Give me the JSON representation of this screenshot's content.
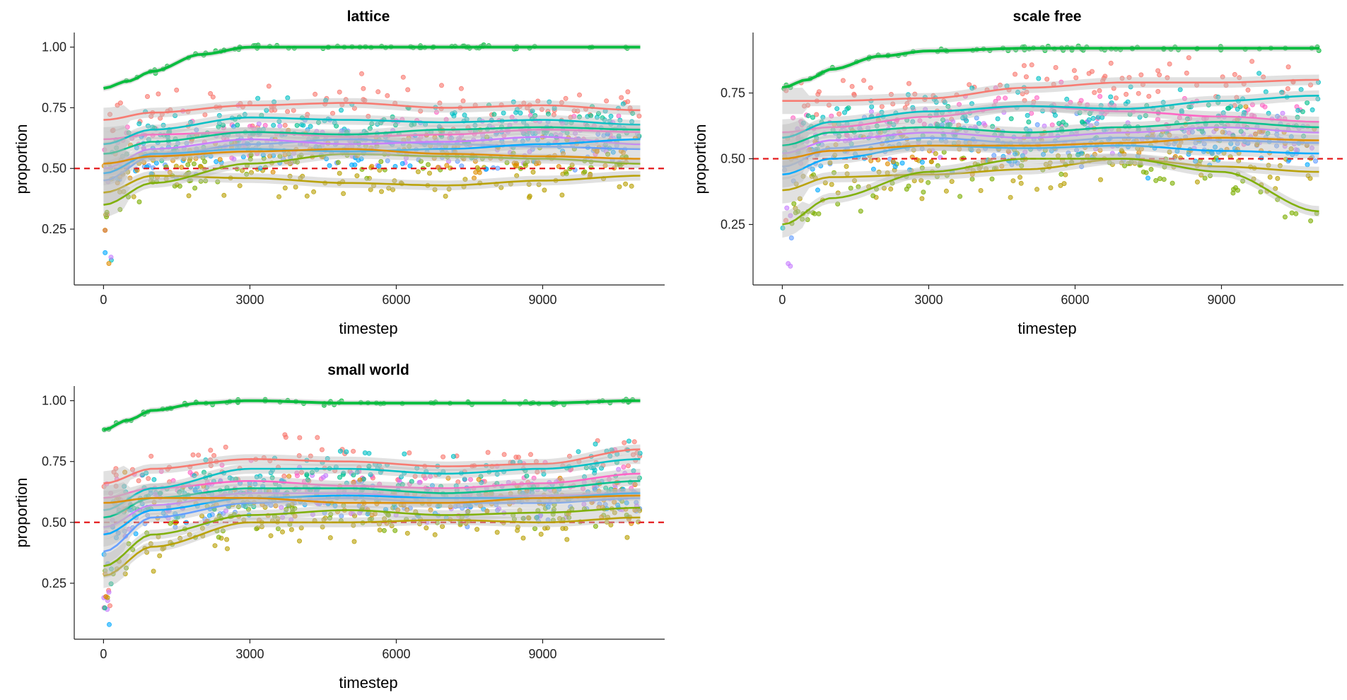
{
  "colors": {
    "reference_line": "#e41a1c",
    "axis": "#222222",
    "band": "#bdbdbd"
  },
  "chart_data": [
    {
      "type": "scatter",
      "title": "lattice",
      "xlabel": "timestep",
      "ylabel": "proportion",
      "xlim": [
        -600,
        11500
      ],
      "ylim": [
        0.02,
        1.06
      ],
      "x_ticks": [
        0,
        3000,
        6000,
        9000
      ],
      "x_tick_labels": [
        "0",
        "3000",
        "6000",
        "9000"
      ],
      "y_ticks": [
        0.25,
        0.5,
        0.75,
        1.0
      ],
      "y_tick_labels": [
        "0.25",
        "0.50",
        "0.75",
        "1.00"
      ],
      "reference_line": {
        "y": 0.5,
        "style": "dashed",
        "color": "#e41a1c"
      },
      "grid": false,
      "smooth_curves": [
        {
          "color": "#00ba38",
          "x": [
            0,
            500,
            1000,
            2000,
            3000,
            5000,
            7000,
            9000,
            11000
          ],
          "y": [
            0.83,
            0.86,
            0.9,
            0.97,
            1.0,
            1.0,
            1.0,
            1.0,
            1.0
          ]
        },
        {
          "color": "#f8766d",
          "x": [
            0,
            1000,
            3000,
            5000,
            7000,
            9000,
            11000
          ],
          "y": [
            0.7,
            0.73,
            0.76,
            0.77,
            0.75,
            0.76,
            0.74
          ]
        },
        {
          "color": "#ff61c3",
          "x": [
            0,
            1000,
            3000,
            5000,
            7000,
            9000,
            11000
          ],
          "y": [
            0.62,
            0.64,
            0.65,
            0.63,
            0.64,
            0.66,
            0.65
          ]
        },
        {
          "color": "#00bfc4",
          "x": [
            0,
            1000,
            3000,
            5000,
            7000,
            9000,
            11000
          ],
          "y": [
            0.6,
            0.66,
            0.71,
            0.7,
            0.69,
            0.7,
            0.68
          ]
        },
        {
          "color": "#619cff",
          "x": [
            0,
            1000,
            3000,
            5000,
            7000,
            9000,
            11000
          ],
          "y": [
            0.45,
            0.55,
            0.6,
            0.62,
            0.6,
            0.59,
            0.58
          ]
        },
        {
          "color": "#c77cff",
          "x": [
            0,
            1000,
            3000,
            5000,
            7000,
            9000,
            11000
          ],
          "y": [
            0.5,
            0.58,
            0.62,
            0.6,
            0.61,
            0.63,
            0.6
          ]
        },
        {
          "color": "#b79f00",
          "x": [
            0,
            1000,
            3000,
            5000,
            7000,
            9000,
            11000
          ],
          "y": [
            0.4,
            0.47,
            0.46,
            0.44,
            0.43,
            0.45,
            0.47
          ]
        },
        {
          "color": "#7cae00",
          "x": [
            0,
            1000,
            3000,
            5000,
            7000,
            9000,
            11000
          ],
          "y": [
            0.35,
            0.44,
            0.52,
            0.56,
            0.55,
            0.54,
            0.52
          ]
        },
        {
          "color": "#00a9ff",
          "x": [
            0,
            1000,
            3000,
            5000,
            7000,
            9000,
            11000
          ],
          "y": [
            0.48,
            0.56,
            0.58,
            0.57,
            0.58,
            0.6,
            0.62
          ]
        },
        {
          "color": "#00c08b",
          "x": [
            0,
            1000,
            3000,
            5000,
            7000,
            9000,
            11000
          ],
          "y": [
            0.56,
            0.61,
            0.65,
            0.64,
            0.66,
            0.67,
            0.66
          ]
        },
        {
          "color": "#de8c00",
          "x": [
            0,
            1000,
            3000,
            5000,
            7000,
            9000,
            11000
          ],
          "y": [
            0.52,
            0.55,
            0.57,
            0.58,
            0.56,
            0.55,
            0.54
          ]
        }
      ]
    },
    {
      "type": "scatter",
      "title": "scale free",
      "xlabel": "timestep",
      "ylabel": "proportion",
      "xlim": [
        -600,
        11500
      ],
      "ylim": [
        0.02,
        0.98
      ],
      "x_ticks": [
        0,
        3000,
        6000,
        9000
      ],
      "x_tick_labels": [
        "0",
        "3000",
        "6000",
        "9000"
      ],
      "y_ticks": [
        0.25,
        0.5,
        0.75
      ],
      "y_tick_labels": [
        "0.25",
        "0.50",
        "0.75"
      ],
      "reference_line": {
        "y": 0.5,
        "style": "dashed",
        "color": "#e41a1c"
      },
      "grid": false,
      "smooth_curves": [
        {
          "color": "#00ba38",
          "x": [
            0,
            500,
            1000,
            2000,
            3000,
            5000,
            7000,
            9000,
            11000
          ],
          "y": [
            0.77,
            0.8,
            0.84,
            0.89,
            0.91,
            0.92,
            0.92,
            0.92,
            0.92
          ]
        },
        {
          "color": "#f8766d",
          "x": [
            0,
            1000,
            3000,
            5000,
            7000,
            9000,
            11000
          ],
          "y": [
            0.72,
            0.72,
            0.73,
            0.77,
            0.79,
            0.79,
            0.8
          ]
        },
        {
          "color": "#ff61c3",
          "x": [
            0,
            1000,
            3000,
            5000,
            7000,
            9000,
            11000
          ],
          "y": [
            0.6,
            0.62,
            0.66,
            0.7,
            0.68,
            0.66,
            0.64
          ]
        },
        {
          "color": "#00bfc4",
          "x": [
            0,
            1000,
            3000,
            5000,
            7000,
            9000,
            11000
          ],
          "y": [
            0.58,
            0.64,
            0.68,
            0.7,
            0.69,
            0.72,
            0.74
          ]
        },
        {
          "color": "#619cff",
          "x": [
            0,
            1000,
            3000,
            5000,
            7000,
            9000,
            11000
          ],
          "y": [
            0.47,
            0.54,
            0.58,
            0.56,
            0.58,
            0.57,
            0.56
          ]
        },
        {
          "color": "#c77cff",
          "x": [
            0,
            1000,
            3000,
            5000,
            7000,
            9000,
            11000
          ],
          "y": [
            0.52,
            0.57,
            0.6,
            0.58,
            0.6,
            0.62,
            0.6
          ]
        },
        {
          "color": "#b79f00",
          "x": [
            0,
            1000,
            3000,
            5000,
            7000,
            9000,
            11000
          ],
          "y": [
            0.38,
            0.43,
            0.44,
            0.46,
            0.5,
            0.47,
            0.45
          ]
        },
        {
          "color": "#7cae00",
          "x": [
            0,
            1000,
            3000,
            5000,
            7000,
            9000,
            11000
          ],
          "y": [
            0.25,
            0.35,
            0.45,
            0.5,
            0.5,
            0.45,
            0.3
          ]
        },
        {
          "color": "#00a9ff",
          "x": [
            0,
            1000,
            3000,
            5000,
            7000,
            9000,
            11000
          ],
          "y": [
            0.44,
            0.5,
            0.55,
            0.54,
            0.55,
            0.53,
            0.52
          ]
        },
        {
          "color": "#00c08b",
          "x": [
            0,
            1000,
            3000,
            5000,
            7000,
            9000,
            11000
          ],
          "y": [
            0.55,
            0.6,
            0.62,
            0.6,
            0.62,
            0.64,
            0.62
          ]
        },
        {
          "color": "#de8c00",
          "x": [
            0,
            1000,
            3000,
            5000,
            7000,
            9000,
            11000
          ],
          "y": [
            0.5,
            0.53,
            0.55,
            0.55,
            0.56,
            0.58,
            0.57
          ]
        }
      ]
    },
    {
      "type": "scatter",
      "title": "small world",
      "xlabel": "timestep",
      "ylabel": "proportion",
      "xlim": [
        -600,
        11500
      ],
      "ylim": [
        0.02,
        1.06
      ],
      "x_ticks": [
        0,
        3000,
        6000,
        9000
      ],
      "x_tick_labels": [
        "0",
        "3000",
        "6000",
        "9000"
      ],
      "y_ticks": [
        0.25,
        0.5,
        0.75,
        1.0
      ],
      "y_tick_labels": [
        "0.25",
        "0.50",
        "0.75",
        "1.00"
      ],
      "reference_line": {
        "y": 0.5,
        "style": "dashed",
        "color": "#e41a1c"
      },
      "grid": false,
      "smooth_curves": [
        {
          "color": "#00ba38",
          "x": [
            0,
            500,
            1000,
            2000,
            3000,
            5000,
            7000,
            9000,
            11000
          ],
          "y": [
            0.88,
            0.92,
            0.96,
            0.99,
            1.0,
            0.99,
            0.99,
            0.99,
            1.0
          ]
        },
        {
          "color": "#f8766d",
          "x": [
            0,
            1000,
            3000,
            5000,
            7000,
            9000,
            11000
          ],
          "y": [
            0.66,
            0.72,
            0.76,
            0.75,
            0.73,
            0.74,
            0.8
          ]
        },
        {
          "color": "#ff61c3",
          "x": [
            0,
            1000,
            3000,
            5000,
            7000,
            9000,
            11000
          ],
          "y": [
            0.6,
            0.64,
            0.67,
            0.65,
            0.64,
            0.66,
            0.7
          ]
        },
        {
          "color": "#00bfc4",
          "x": [
            0,
            1000,
            3000,
            5000,
            7000,
            9000,
            11000
          ],
          "y": [
            0.55,
            0.64,
            0.72,
            0.72,
            0.7,
            0.72,
            0.76
          ]
        },
        {
          "color": "#619cff",
          "x": [
            0,
            1000,
            3000,
            5000,
            7000,
            9000,
            11000
          ],
          "y": [
            0.38,
            0.52,
            0.58,
            0.6,
            0.58,
            0.58,
            0.6
          ]
        },
        {
          "color": "#c77cff",
          "x": [
            0,
            1000,
            3000,
            5000,
            7000,
            9000,
            11000
          ],
          "y": [
            0.48,
            0.57,
            0.62,
            0.62,
            0.6,
            0.61,
            0.62
          ]
        },
        {
          "color": "#b79f00",
          "x": [
            0,
            1000,
            3000,
            5000,
            7000,
            9000,
            11000
          ],
          "y": [
            0.28,
            0.4,
            0.5,
            0.5,
            0.51,
            0.5,
            0.52
          ]
        },
        {
          "color": "#7cae00",
          "x": [
            0,
            1000,
            3000,
            5000,
            7000,
            9000,
            11000
          ],
          "y": [
            0.32,
            0.45,
            0.53,
            0.55,
            0.53,
            0.54,
            0.56
          ]
        },
        {
          "color": "#00a9ff",
          "x": [
            0,
            1000,
            3000,
            5000,
            7000,
            9000,
            11000
          ],
          "y": [
            0.45,
            0.55,
            0.6,
            0.61,
            0.6,
            0.6,
            0.62
          ]
        },
        {
          "color": "#00c08b",
          "x": [
            0,
            1000,
            3000,
            5000,
            7000,
            9000,
            11000
          ],
          "y": [
            0.52,
            0.6,
            0.64,
            0.64,
            0.62,
            0.64,
            0.67
          ]
        },
        {
          "color": "#de8c00",
          "x": [
            0,
            1000,
            3000,
            5000,
            7000,
            9000,
            11000
          ],
          "y": [
            0.58,
            0.6,
            0.6,
            0.58,
            0.58,
            0.6,
            0.61
          ]
        }
      ]
    }
  ]
}
